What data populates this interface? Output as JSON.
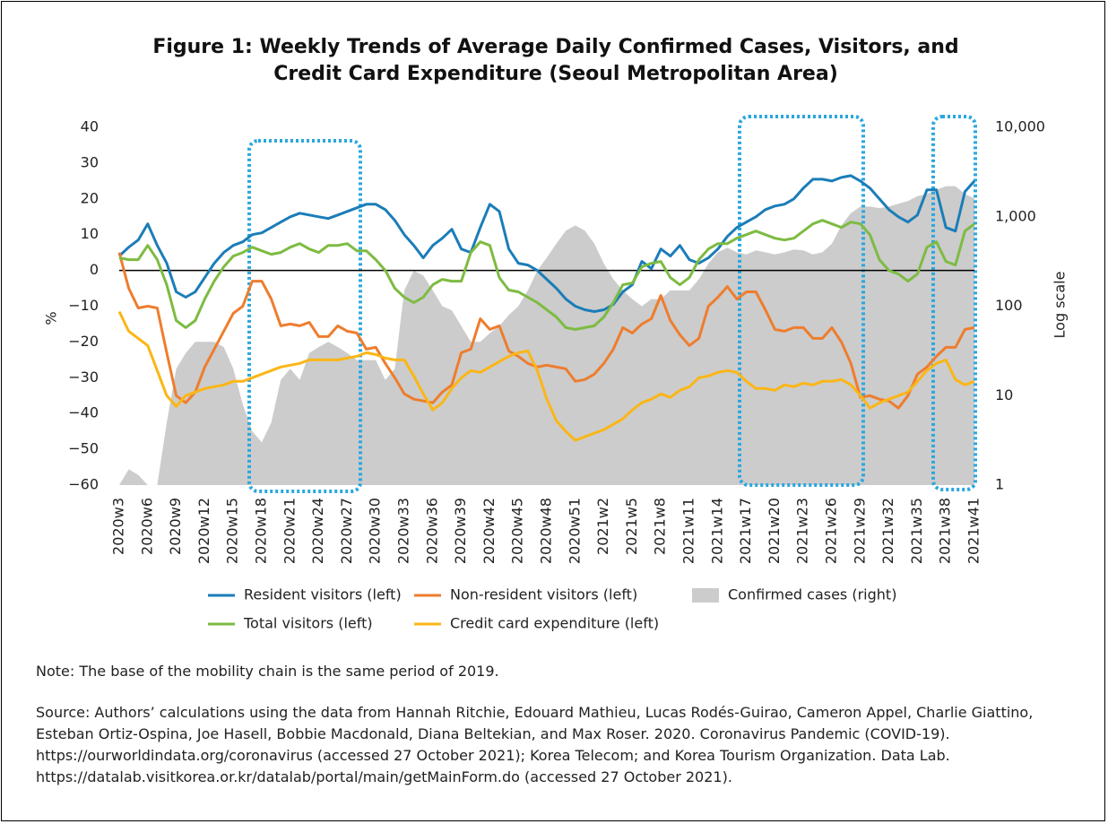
{
  "chart_data": {
    "type": "line",
    "title": "Figure 1: Weekly Trends of Average Daily Confirmed Cases, Visitors, and Credit Card Expenditure (Seoul Metropolitan Area)",
    "ylabel": "%",
    "y2label": "Log scale",
    "categories": [
      "2020w3",
      null,
      null,
      "2020w6",
      null,
      null,
      "2020w9",
      null,
      null,
      "2020w12",
      null,
      null,
      "2020w15",
      null,
      null,
      "2020w18",
      null,
      null,
      "2020w21",
      null,
      null,
      "2020w24",
      null,
      null,
      "2020w27",
      null,
      null,
      "2020w30",
      null,
      null,
      "2020w33",
      null,
      null,
      "2020w36",
      null,
      null,
      "2020w39",
      null,
      null,
      "2020w42",
      null,
      null,
      "2020w45",
      null,
      null,
      "2020w48",
      null,
      null,
      "2020w51",
      null,
      null,
      "2021w2",
      null,
      null,
      "2021w5",
      null,
      null,
      "2021w8",
      null,
      null,
      "2021w11",
      null,
      null,
      "2021w14",
      null,
      null,
      "2021w17",
      null,
      null,
      "2021w20",
      null,
      null,
      "2021w23",
      null,
      null,
      "2021w26",
      null,
      null,
      "2021w29",
      null,
      null,
      "2021w32",
      null,
      null,
      "2021w35",
      null,
      null,
      "2021w38",
      null,
      null,
      "2021w41"
    ],
    "ylim": [
      -60,
      40
    ],
    "yticks": [
      {
        "value": -60,
        "label": "−60"
      },
      {
        "value": -50,
        "label": "−50"
      },
      {
        "value": -40,
        "label": "−40"
      },
      {
        "value": -30,
        "label": "−30"
      },
      {
        "value": -20,
        "label": "−20"
      },
      {
        "value": -10,
        "label": "−10"
      },
      0,
      10,
      20,
      30,
      40
    ],
    "y2lim": [
      1,
      10000
    ],
    "y2ticks": [
      1,
      10,
      100,
      {
        "value": 1000,
        "label": "1,000"
      },
      {
        "value": 10000,
        "label": "10,000"
      }
    ],
    "y2scale": "log",
    "zero_line": true,
    "series": [
      {
        "name": "Resident visitors (left)",
        "color": "#1b7db8",
        "type": "line",
        "values": [
          4,
          6.5,
          8.5,
          13,
          7,
          2,
          -6,
          -7.5,
          -6,
          -2,
          2,
          5,
          7,
          8,
          10,
          10.5,
          12,
          13.5,
          15,
          16,
          15.5,
          15,
          14.5,
          15.5,
          16.5,
          17.5,
          18.5,
          18.5,
          17,
          14,
          10,
          7,
          3.5,
          7,
          9,
          11.5,
          6,
          5,
          12,
          18.5,
          16.5,
          6,
          2,
          1.5,
          0,
          -2.5,
          -5,
          -8,
          -10,
          -11,
          -11.5,
          -11,
          -9.5,
          -6,
          -4,
          2.5,
          0.5,
          6,
          4,
          7,
          3,
          2,
          3.5,
          6,
          9.5,
          12,
          13.5,
          15,
          17,
          18,
          18.5,
          20,
          23,
          25.5,
          25.5,
          25,
          26,
          26.5,
          25,
          23,
          20,
          17,
          15,
          13.5,
          15.5,
          22.5,
          22.5,
          12,
          11,
          22,
          25
        ]
      },
      {
        "name": "Non-resident visitors (left)",
        "color": "#ee7d2e",
        "type": "line",
        "values": [
          5,
          -5,
          -10.5,
          -10,
          -10.5,
          -23,
          -35,
          -37,
          -34,
          -27,
          -22,
          -17,
          -12,
          -10,
          -3,
          -3,
          -8,
          -15.5,
          -15,
          -15.5,
          -14.5,
          -18.5,
          -18.5,
          -15.5,
          -17,
          -17.5,
          -22,
          -21.5,
          -26,
          -30,
          -34.5,
          -36,
          -36.5,
          -37,
          -34,
          -32,
          -23,
          -22,
          -13.5,
          -16.5,
          -15.5,
          -22.5,
          -24,
          -26,
          -27,
          -26.5,
          -27,
          -27.5,
          -31,
          -30.5,
          -29,
          -26,
          -22,
          -16,
          -17.5,
          -15,
          -13.5,
          -7,
          -14,
          -18,
          -21,
          -19,
          -10,
          -7.5,
          -4.5,
          -8,
          -6,
          -6,
          -11,
          -16.5,
          -17,
          -16,
          -16,
          -19,
          -19,
          -16,
          -20,
          -26,
          -35.5,
          -35,
          -36,
          -36.5,
          -38.5,
          -35,
          -29,
          -27,
          -24,
          -21.5,
          -21.5,
          -16.5,
          -16
        ]
      },
      {
        "name": "Confirmed cases (right)",
        "color": "#cccccc",
        "type": "area",
        "axis": "y2",
        "values": [
          1,
          1.5,
          1.3,
          1,
          1,
          5,
          20,
          30,
          40,
          40,
          40,
          35,
          20,
          8,
          4,
          3,
          5,
          15,
          20,
          15,
          30,
          35,
          40,
          35,
          30,
          25,
          25,
          25,
          15,
          20,
          150,
          250,
          220,
          150,
          100,
          90,
          60,
          40,
          40,
          50,
          60,
          80,
          100,
          150,
          250,
          350,
          500,
          700,
          800,
          700,
          500,
          300,
          200,
          150,
          120,
          100,
          120,
          120,
          150,
          150,
          150,
          200,
          300,
          400,
          450,
          400,
          380,
          420,
          400,
          380,
          400,
          430,
          420,
          380,
          400,
          500,
          800,
          1100,
          1300,
          1300,
          1250,
          1300,
          1400,
          1500,
          1700,
          1800,
          2000,
          2200,
          2200,
          1800,
          1600
        ]
      },
      {
        "name": "Total visitors (left)",
        "color": "#7dbb42",
        "type": "line",
        "values": [
          3.5,
          3,
          3,
          7,
          3,
          -4,
          -14,
          -16,
          -14,
          -8,
          -3,
          1,
          4,
          5,
          6.5,
          5.5,
          4.5,
          5,
          6.5,
          7.5,
          6,
          5,
          7,
          7,
          7.5,
          5.5,
          5.5,
          3,
          0,
          -5,
          -7.5,
          -9,
          -7.5,
          -4,
          -2.5,
          -3,
          -3,
          5,
          8,
          7,
          -2,
          -5.5,
          -6,
          -7.5,
          -9,
          -11,
          -13,
          -16,
          -16.5,
          -16,
          -15.5,
          -13,
          -9,
          -4,
          -3.5,
          1,
          2,
          2.5,
          -2,
          -4,
          -2,
          3,
          6,
          7.5,
          7.5,
          9,
          10,
          11,
          10,
          9,
          8.5,
          9,
          11,
          13,
          14,
          13,
          12,
          13.5,
          13,
          10,
          3,
          0,
          -1,
          -3,
          -1,
          6.5,
          8,
          2.5,
          1.5,
          11,
          13
        ]
      },
      {
        "name": "Credit card expenditure (left)",
        "color": "#fbb616",
        "type": "line",
        "values": [
          -11.5,
          -17,
          -19,
          -21,
          -28,
          -35,
          -38,
          -35,
          -34,
          -33,
          -32.5,
          -32,
          -31,
          -31,
          -30,
          -29,
          -28,
          -27,
          -26.5,
          -26,
          -25,
          -25,
          -25,
          -25,
          -24.5,
          -24,
          -23,
          -23.5,
          -24.5,
          -25,
          -25,
          -29.5,
          -34.5,
          -39,
          -37,
          -33,
          -30,
          -28,
          -28.5,
          -27,
          -25.5,
          -24,
          -23,
          -22.5,
          -28,
          -36,
          -42,
          -45,
          -47.5,
          -46.5,
          -45.5,
          -44.5,
          -43,
          -41.5,
          -39,
          -37,
          -36,
          -34.5,
          -35.5,
          -33.5,
          -32.5,
          -30,
          -29.5,
          -28.5,
          -28,
          -28.5,
          -31,
          -33,
          -33,
          -33.5,
          -32,
          -32.5,
          -31.5,
          -32,
          -31,
          -31,
          -30.5,
          -32,
          -35,
          -38.5,
          -37,
          -36,
          -35,
          -34,
          -31,
          -28,
          -26,
          -25,
          -30.5,
          -32,
          -31
        ]
      }
    ],
    "note": "Note: The base of the mobility chain is the same period of 2019.",
    "source": "Source: Authors’ calculations using the data from Hannah Ritchie, Edouard Mathieu, Lucas Rodés-Guirao, Cameron Appel, Charlie Giattino, Esteban Ortiz-Ospina, Joe Hasell, Bobbie Macdonald, Diana Beltekian, and Max Roser. 2020. Coronavirus Pandemic (COVID-19). https://ourworldindata.org/coronavirus (accessed 27 October 2021); Korea Telecom; and Korea Tourism Organization. Data Lab. https://datalab.visitkorea.or.kr/datalab/portal/main/getMainForm.do (accessed 27 October 2021)."
  }
}
